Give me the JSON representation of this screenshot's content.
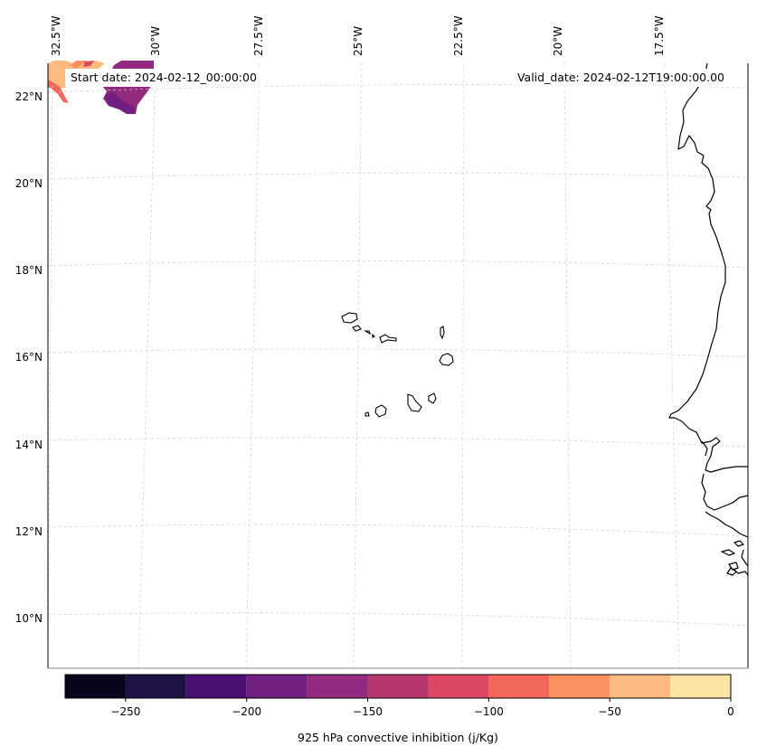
{
  "map": {
    "start_date_text": "Start date: 2024-02-12_00:00:00",
    "valid_date_text": "Valid_date: 2024-02-12T19:00:00.00",
    "lon_ticks": [
      "32.5°W",
      "30°W",
      "27.5°W",
      "25°W",
      "22.5°W",
      "20°W",
      "17.5°W"
    ],
    "lat_ticks": [
      "22°N",
      "20°N",
      "18°N",
      "16°N",
      "14°N",
      "12°N",
      "10°N"
    ]
  },
  "colorbar": {
    "label": "925 hPa convective inhibition (j/Kg)",
    "tick_labels": [
      "−250",
      "−200",
      "−150",
      "−100",
      "−50",
      "0"
    ],
    "bounds": [
      -275,
      -250,
      -225,
      -200,
      -175,
      -150,
      -125,
      -100,
      -75,
      -50,
      -25,
      0
    ],
    "colors": [
      "#08061c",
      "#1e1246",
      "#4b0f74",
      "#711f81",
      "#922b7f",
      "#b6366e",
      "#dc4763",
      "#f3675b",
      "#fc9061",
      "#feba7f",
      "#fde4a5"
    ]
  }
}
